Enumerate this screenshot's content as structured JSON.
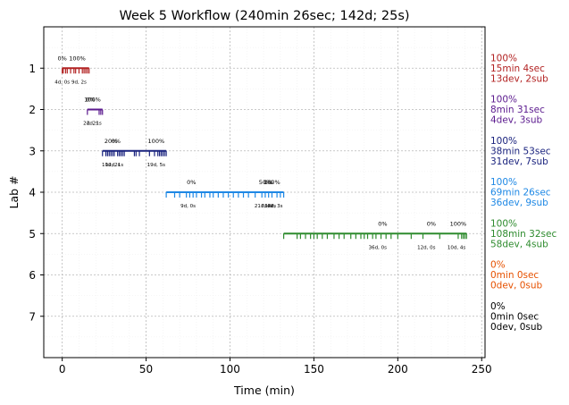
{
  "chart_data": {
    "type": "timeline",
    "title": "Week 5 Workflow (240min 26sec; 142d; 25s)",
    "xlabel": "Time (min)",
    "ylabel": "Lab #",
    "xlim": [
      -11,
      252
    ],
    "ylim": [
      8,
      0
    ],
    "xticks": [
      0,
      50,
      100,
      150,
      200,
      250
    ],
    "yticks": [
      1,
      2,
      3,
      4,
      5,
      6,
      7
    ],
    "grid": true,
    "labs": [
      {
        "lab": 1,
        "color": "#b22222",
        "start": 0,
        "end": 16,
        "ticks": [
          0,
          0.6,
          2,
          3,
          5,
          7,
          8,
          10,
          12,
          13,
          14,
          15,
          16
        ],
        "above_labels": [
          {
            "x": 0,
            "text": "0%"
          },
          {
            "x": 9,
            "text": "100%"
          }
        ],
        "below_labels": [
          {
            "x": 0,
            "text": "4d, 0s"
          },
          {
            "x": 10,
            "text": "9d, 2s"
          }
        ],
        "summary": [
          "100%",
          "15min 4sec",
          "13dev, 2sub"
        ]
      },
      {
        "lab": 2,
        "color": "#5b1a8e",
        "start": 15,
        "end": 24,
        "ticks": [
          15,
          22,
          23,
          24
        ],
        "above_labels": [
          {
            "x": 17,
            "text": "0%"
          },
          {
            "x": 18,
            "text": "100%"
          }
        ],
        "below_labels": [
          {
            "x": 17,
            "text": "2d, 2s"
          },
          {
            "x": 19,
            "text": "2d, 1s"
          }
        ],
        "summary": [
          "100%",
          "8min 31sec",
          "4dev, 3sub"
        ]
      },
      {
        "lab": 3,
        "color": "#1a237e",
        "start": 24,
        "end": 62,
        "ticks": [
          24,
          26,
          27,
          28,
          29,
          30,
          31,
          33,
          34,
          35,
          36,
          37,
          43,
          44,
          46,
          52,
          55,
          57,
          58,
          59,
          60,
          61,
          62
        ],
        "above_labels": [
          {
            "x": 29,
            "text": "20%"
          },
          {
            "x": 32,
            "text": "0%"
          },
          {
            "x": 56,
            "text": "100%"
          }
        ],
        "below_labels": [
          {
            "x": 29,
            "text": "10d, 2s"
          },
          {
            "x": 31,
            "text": "12d, 1s"
          },
          {
            "x": 56,
            "text": "19d, 5s"
          }
        ],
        "summary": [
          "100%",
          "38min 53sec",
          "31dev, 7sub"
        ]
      },
      {
        "lab": 4,
        "color": "#1e88e5",
        "start": 62,
        "end": 132,
        "ticks": [
          62,
          67,
          70,
          74,
          76,
          78,
          80,
          83,
          85,
          88,
          90,
          93,
          96,
          99,
          102,
          105,
          108,
          111,
          115,
          119,
          121,
          123,
          125,
          128,
          130,
          132
        ],
        "above_labels": [
          {
            "x": 77,
            "text": "0%"
          },
          {
            "x": 121,
            "text": "50%"
          },
          {
            "x": 123,
            "text": "0%"
          },
          {
            "x": 125,
            "text": "100%"
          }
        ],
        "below_labels": [
          {
            "x": 75,
            "text": "9d, 0s"
          },
          {
            "x": 120,
            "text": "21d, 4s"
          },
          {
            "x": 123,
            "text": "7d, 2s"
          },
          {
            "x": 126,
            "text": "18d, 3s"
          }
        ],
        "summary": [
          "100%",
          "69min 26sec",
          "36dev, 9sub"
        ]
      },
      {
        "lab": 5,
        "color": "#2e8b2e",
        "start": 132,
        "end": 241,
        "ticks": [
          132,
          140,
          142,
          145,
          148,
          150,
          152,
          155,
          158,
          162,
          165,
          168,
          172,
          175,
          178,
          180,
          182,
          185,
          187,
          190,
          193,
          196,
          200,
          208,
          215,
          225,
          236,
          238,
          239,
          240,
          241
        ],
        "above_labels": [
          {
            "x": 191,
            "text": "0%"
          },
          {
            "x": 220,
            "text": "0%"
          },
          {
            "x": 236,
            "text": "100%"
          }
        ],
        "below_labels": [
          {
            "x": 188,
            "text": "36d, 0s"
          },
          {
            "x": 217,
            "text": "12d, 0s"
          },
          {
            "x": 235,
            "text": "10d, 4s"
          }
        ],
        "summary": [
          "100%",
          "108min 32sec",
          "58dev, 4sub"
        ]
      },
      {
        "lab": 6,
        "color": "#e65100",
        "summary": [
          "0%",
          "0min 0sec",
          "0dev, 0sub"
        ]
      },
      {
        "lab": 7,
        "color": "#000000",
        "summary": [
          "0%",
          "0min 0sec",
          "0dev, 0sub"
        ]
      }
    ]
  }
}
